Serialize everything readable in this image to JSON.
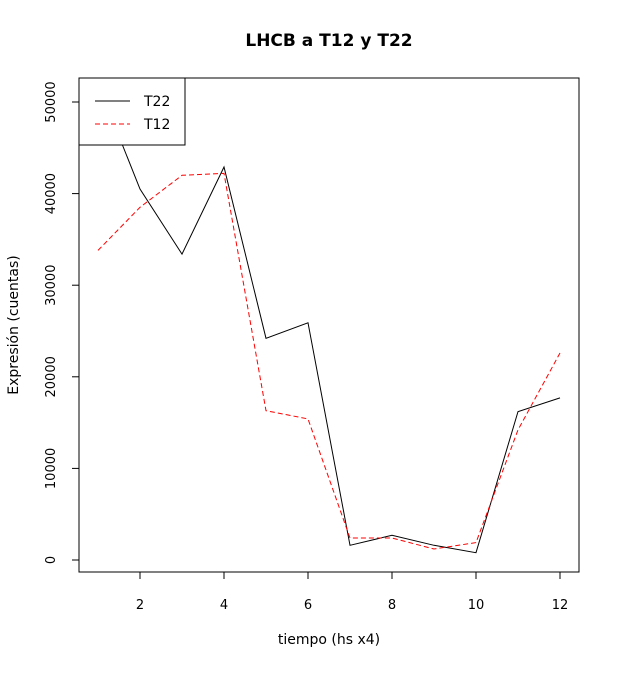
{
  "chart_data": {
    "type": "line",
    "title": "LHCB a T12 y T22",
    "xlabel": "tiempo (hs x4)",
    "ylabel": "Expresión (cuentas)",
    "xlim": [
      1,
      12
    ],
    "ylim": [
      0,
      52000
    ],
    "xticks": [
      2,
      4,
      6,
      8,
      10,
      12
    ],
    "yticks": [
      0,
      10000,
      20000,
      30000,
      40000,
      50000
    ],
    "grid": false,
    "legend_position": "top-left",
    "x": [
      1,
      2,
      3,
      4,
      5,
      6,
      7,
      8,
      9,
      10,
      11,
      12
    ],
    "series": [
      {
        "name": "T22",
        "color": "#000000",
        "line_style": "solid",
        "values": [
          52000,
          40500,
          33400,
          42900,
          24200,
          25900,
          1600,
          2700,
          1600,
          800,
          16200,
          17700
        ]
      },
      {
        "name": "T12",
        "color": "#ff0000",
        "line_style": "dashed",
        "values": [
          33800,
          38500,
          42000,
          42200,
          16300,
          15400,
          2400,
          2400,
          1200,
          1900,
          14200,
          22600
        ]
      }
    ]
  }
}
